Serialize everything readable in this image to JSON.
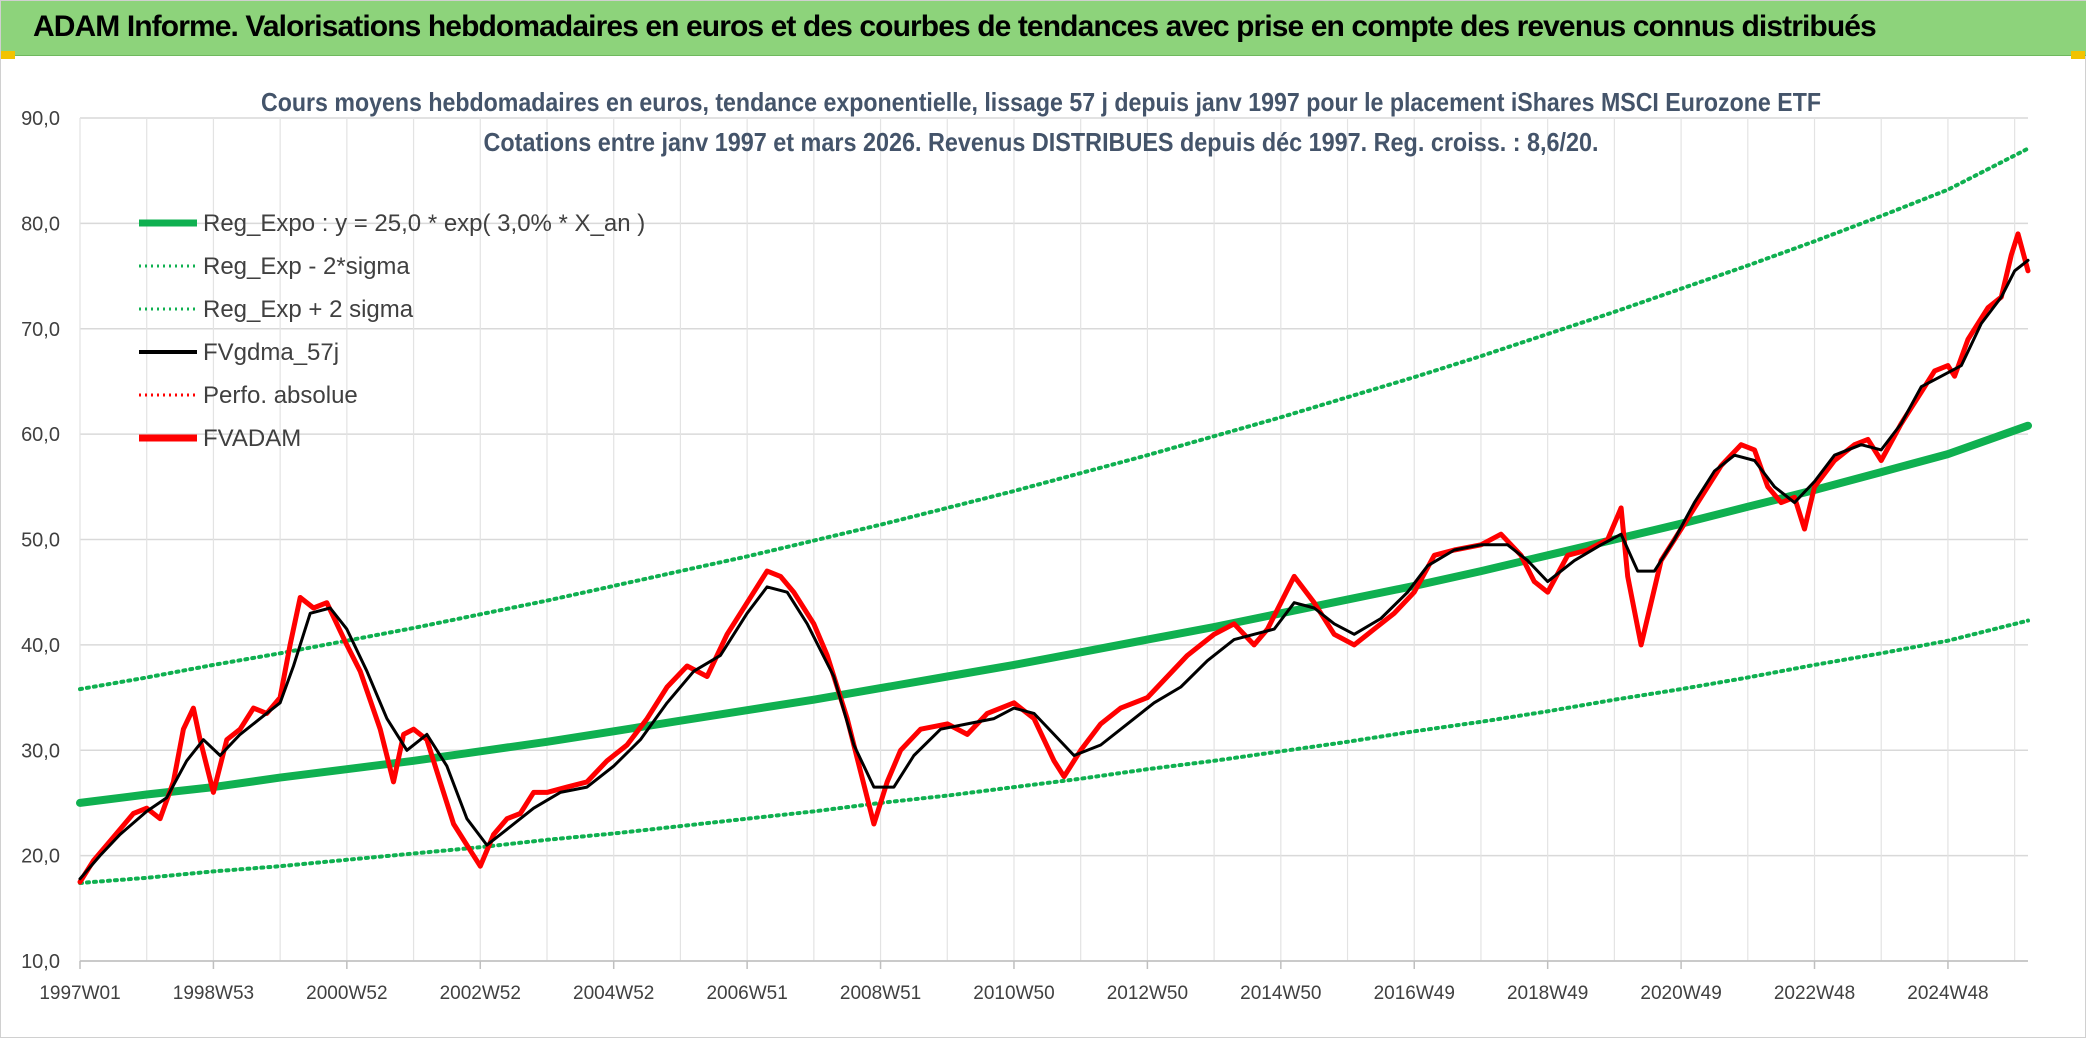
{
  "banner": {
    "title": "ADAM Informe. Valorisations hebdomadaires en euros et des courbes de tendances avec prise en compte des revenus connus distribués"
  },
  "colors": {
    "banner_bg": "#8dd37b",
    "banner_corner": "#f2c300",
    "trend_green": "#0fb050",
    "price_red": "#ff0000",
    "gdma_black": "#000000"
  },
  "chart_data": {
    "type": "line",
    "title": "Cours moyens hebdomadaires en euros, tendance exponentielle, lissage 57 j depuis janv 1997 pour le placement iShares MSCI Eurozone ETF",
    "subtitle": "Cotations entre janv 1997 et mars 2026. Revenus DISTRIBUES depuis déc 1997. Reg. croiss. : 8,6/20.",
    "xlabel": "",
    "ylabel": "",
    "ylim": [
      10,
      90
    ],
    "yticks": [
      "10,0",
      "20,0",
      "30,0",
      "40,0",
      "50,0",
      "60,0",
      "70,0",
      "80,0",
      "90,0"
    ],
    "xlim": [
      1997.0,
      2026.2
    ],
    "xticks": [
      {
        "label": "1997W01",
        "t": 1997.0
      },
      {
        "label": "1998W53",
        "t": 1999.0
      },
      {
        "label": "2000W52",
        "t": 2001.0
      },
      {
        "label": "2002W52",
        "t": 2003.0
      },
      {
        "label": "2004W52",
        "t": 2005.0
      },
      {
        "label": "2006W51",
        "t": 2007.0
      },
      {
        "label": "2008W51",
        "t": 2009.0
      },
      {
        "label": "2010W50",
        "t": 2011.0
      },
      {
        "label": "2012W50",
        "t": 2013.0
      },
      {
        "label": "2014W50",
        "t": 2015.0
      },
      {
        "label": "2016W49",
        "t": 2017.0
      },
      {
        "label": "2018W49",
        "t": 2019.0
      },
      {
        "label": "2020W49",
        "t": 2021.0
      },
      {
        "label": "2022W48",
        "t": 2023.0
      },
      {
        "label": "2024W48",
        "t": 2025.0
      }
    ],
    "grid": true,
    "legend_position": "top-left",
    "legend": [
      {
        "label": "Reg_Expo : y = 25,0 * exp( 3,0% *  X_an )",
        "style": "solid-thick",
        "color": "#0fb050"
      },
      {
        "label": "Reg_Exp - 2*sigma",
        "style": "dotted",
        "color": "#0fb050"
      },
      {
        "label": "Reg_Exp + 2 sigma",
        "style": "dotted",
        "color": "#0fb050"
      },
      {
        "label": "FVgdma_57j",
        "style": "solid",
        "color": "#000000"
      },
      {
        "label": "Perfo. absolue",
        "style": "dotted",
        "color": "#ff0000"
      },
      {
        "label": "FVADAM",
        "style": "solid-thick",
        "color": "#ff0000"
      }
    ],
    "series": [
      {
        "name": "Reg_Expo : y = 25,0 * exp( 3,0% *  X_an )",
        "x": [
          1997,
          1998,
          1999,
          2000,
          2001,
          2002,
          2003,
          2004,
          2005,
          2006,
          2007,
          2008,
          2009,
          2010,
          2011,
          2012,
          2013,
          2014,
          2015,
          2016,
          2017,
          2018,
          2019,
          2020,
          2021,
          2022,
          2023,
          2024,
          2025,
          2026.2
        ],
        "values": [
          25.0,
          25.8,
          26.5,
          27.4,
          28.2,
          29.0,
          29.9,
          30.8,
          31.8,
          32.8,
          33.8,
          34.8,
          35.9,
          37.0,
          38.1,
          39.3,
          40.5,
          41.7,
          43.0,
          44.3,
          45.6,
          47.0,
          48.5,
          50.0,
          51.5,
          53.1,
          54.7,
          56.4,
          58.1,
          60.8
        ]
      },
      {
        "name": "Reg_Exp - 2*sigma",
        "x": [
          1997,
          1998,
          1999,
          2000,
          2001,
          2002,
          2003,
          2004,
          2005,
          2006,
          2007,
          2008,
          2009,
          2010,
          2011,
          2012,
          2013,
          2014,
          2015,
          2016,
          2017,
          2018,
          2019,
          2020,
          2021,
          2022,
          2023,
          2024,
          2025,
          2026.2
        ],
        "values": [
          17.4,
          17.9,
          18.5,
          19.0,
          19.6,
          20.2,
          20.8,
          21.5,
          22.1,
          22.8,
          23.5,
          24.2,
          25.0,
          25.7,
          26.5,
          27.3,
          28.2,
          29.0,
          29.9,
          30.8,
          31.8,
          32.7,
          33.7,
          34.8,
          35.8,
          36.9,
          38.1,
          39.2,
          40.4,
          42.3
        ]
      },
      {
        "name": "Reg_Exp + 2 sigma",
        "x": [
          1997,
          1998,
          1999,
          2000,
          2001,
          2002,
          2003,
          2004,
          2005,
          2006,
          2007,
          2008,
          2009,
          2010,
          2011,
          2012,
          2013,
          2014,
          2015,
          2016,
          2017,
          2018,
          2019,
          2020,
          2021,
          2022,
          2023,
          2024,
          2025,
          2026.2
        ],
        "values": [
          35.8,
          36.9,
          38.1,
          39.2,
          40.4,
          41.6,
          42.9,
          44.2,
          45.6,
          47.0,
          48.4,
          49.9,
          51.4,
          53.0,
          54.6,
          56.3,
          58.0,
          59.8,
          61.6,
          63.5,
          65.4,
          67.4,
          69.5,
          71.6,
          73.8,
          76.0,
          78.3,
          80.7,
          83.2,
          87.1
        ]
      },
      {
        "name": "FVADAM",
        "x": [
          1997.0,
          1997.2,
          1997.4,
          1997.6,
          1997.8,
          1998.0,
          1998.2,
          1998.4,
          1998.55,
          1998.7,
          1998.8,
          1999.0,
          1999.2,
          1999.4,
          1999.6,
          1999.8,
          2000.0,
          2000.15,
          2000.3,
          2000.5,
          2000.7,
          2001.0,
          2001.2,
          2001.5,
          2001.7,
          2001.85,
          2002.0,
          2002.2,
          2002.4,
          2002.6,
          2002.8,
          2003.0,
          2003.2,
          2003.4,
          2003.6,
          2003.8,
          2004.0,
          2004.3,
          2004.6,
          2004.9,
          2005.2,
          2005.5,
          2005.8,
          2006.1,
          2006.4,
          2006.7,
          2007.0,
          2007.3,
          2007.5,
          2007.7,
          2008.0,
          2008.2,
          2008.5,
          2008.7,
          2008.9,
          2009.1,
          2009.3,
          2009.6,
          2010.0,
          2010.3,
          2010.6,
          2011.0,
          2011.3,
          2011.6,
          2011.75,
          2012.0,
          2012.3,
          2012.6,
          2013.0,
          2013.3,
          2013.6,
          2014.0,
          2014.3,
          2014.6,
          2014.8,
          2015.2,
          2015.5,
          2015.8,
          2016.1,
          2016.4,
          2016.7,
          2017.0,
          2017.3,
          2017.6,
          2018.0,
          2018.3,
          2018.6,
          2018.8,
          2019.0,
          2019.3,
          2019.6,
          2019.9,
          2020.1,
          2020.2,
          2020.4,
          2020.7,
          2021.0,
          2021.3,
          2021.6,
          2021.9,
          2022.1,
          2022.3,
          2022.5,
          2022.7,
          2022.85,
          2023.0,
          2023.3,
          2023.6,
          2023.8,
          2024.0,
          2024.3,
          2024.6,
          2024.8,
          2025.0,
          2025.1,
          2025.3,
          2025.6,
          2025.8,
          2025.95,
          2026.05,
          2026.2
        ],
        "values": [
          17.5,
          19.5,
          21.0,
          22.5,
          24.0,
          24.5,
          23.5,
          27.0,
          32.0,
          34.0,
          31.0,
          26.0,
          31.0,
          32.0,
          34.0,
          33.5,
          35.0,
          40.0,
          44.5,
          43.5,
          44.0,
          40.0,
          37.5,
          32.0,
          27.0,
          31.5,
          32.0,
          31.0,
          27.0,
          23.0,
          21.0,
          19.0,
          22.0,
          23.5,
          24.0,
          26.0,
          26.0,
          26.5,
          27.0,
          29.0,
          30.5,
          33.0,
          36.0,
          38.0,
          37.0,
          41.0,
          44.0,
          47.0,
          46.5,
          45.0,
          42.0,
          39.0,
          33.0,
          28.0,
          23.0,
          27.0,
          30.0,
          32.0,
          32.5,
          31.5,
          33.5,
          34.5,
          33.0,
          29.0,
          27.5,
          30.0,
          32.5,
          34.0,
          35.0,
          37.0,
          39.0,
          41.0,
          42.0,
          40.0,
          41.5,
          46.5,
          44.0,
          41.0,
          40.0,
          41.5,
          43.0,
          45.0,
          48.5,
          49.0,
          49.5,
          50.5,
          48.5,
          46.0,
          45.0,
          48.5,
          49.0,
          50.0,
          53.0,
          46.5,
          40.0,
          48.0,
          51.0,
          54.0,
          57.0,
          59.0,
          58.5,
          55.0,
          53.5,
          54.0,
          51.0,
          55.0,
          57.5,
          59.0,
          59.5,
          57.5,
          61.0,
          64.0,
          66.0,
          66.5,
          65.5,
          69.0,
          72.0,
          73.0,
          77.0,
          79.0,
          75.5
        ]
      },
      {
        "name": "FVgdma_57j",
        "x": [
          1997.0,
          1997.3,
          1997.6,
          1998.0,
          1998.3,
          1998.6,
          1998.85,
          1999.1,
          1999.4,
          1999.7,
          2000.0,
          2000.2,
          2000.45,
          2000.75,
          2001.0,
          2001.3,
          2001.6,
          2001.9,
          2002.2,
          2002.5,
          2002.8,
          2003.1,
          2003.4,
          2003.8,
          2004.2,
          2004.6,
          2005.0,
          2005.4,
          2005.8,
          2006.2,
          2006.6,
          2007.0,
          2007.3,
          2007.6,
          2007.9,
          2008.3,
          2008.6,
          2008.9,
          2009.2,
          2009.5,
          2009.9,
          2010.3,
          2010.7,
          2011.0,
          2011.3,
          2011.6,
          2011.9,
          2012.3,
          2012.7,
          2013.1,
          2013.5,
          2013.9,
          2014.3,
          2014.6,
          2014.9,
          2015.2,
          2015.5,
          2015.8,
          2016.1,
          2016.5,
          2016.9,
          2017.2,
          2017.6,
          2018.0,
          2018.4,
          2018.7,
          2019.0,
          2019.4,
          2019.8,
          2020.1,
          2020.35,
          2020.6,
          2020.9,
          2021.2,
          2021.5,
          2021.8,
          2022.1,
          2022.4,
          2022.7,
          2023.0,
          2023.3,
          2023.7,
          2024.0,
          2024.3,
          2024.6,
          2024.9,
          2025.2,
          2025.5,
          2025.8,
          2026.0,
          2026.2
        ],
        "values": [
          17.8,
          20.0,
          22.0,
          24.2,
          25.5,
          29.0,
          31.0,
          29.5,
          31.5,
          33.0,
          34.5,
          38.0,
          43.0,
          43.5,
          41.5,
          37.5,
          33.0,
          30.0,
          31.5,
          28.5,
          23.5,
          21.0,
          22.5,
          24.5,
          26.0,
          26.5,
          28.5,
          31.0,
          34.5,
          37.5,
          39.0,
          43.0,
          45.5,
          45.0,
          42.0,
          37.0,
          30.5,
          26.5,
          26.5,
          29.5,
          32.0,
          32.5,
          33.0,
          34.0,
          33.5,
          31.5,
          29.5,
          30.5,
          32.5,
          34.5,
          36.0,
          38.5,
          40.5,
          41.0,
          41.5,
          44.0,
          43.5,
          42.0,
          41.0,
          42.5,
          45.0,
          47.5,
          49.0,
          49.5,
          49.5,
          48.0,
          46.0,
          48.0,
          49.5,
          50.5,
          47.0,
          47.0,
          50.0,
          53.5,
          56.5,
          58.0,
          57.5,
          55.0,
          53.5,
          55.5,
          58.0,
          59.0,
          58.5,
          61.0,
          64.5,
          65.5,
          66.5,
          70.5,
          73.0,
          75.5,
          76.5
        ]
      }
    ]
  }
}
